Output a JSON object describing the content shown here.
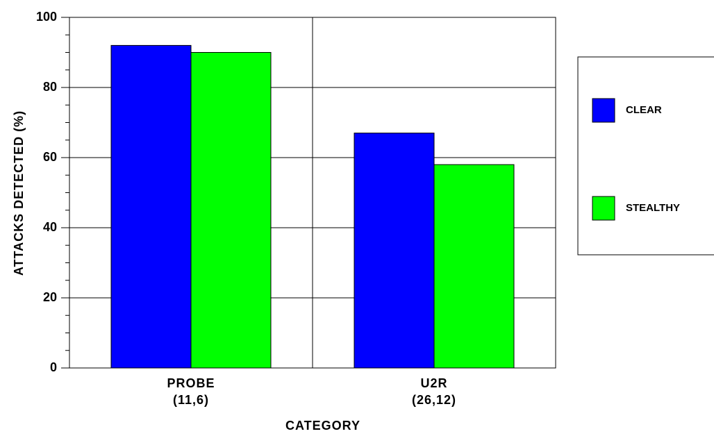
{
  "chart_data": {
    "type": "bar",
    "categories": [
      "PROBE",
      "U2R"
    ],
    "category_counts": [
      "(11,6)",
      "(26,12)"
    ],
    "series": [
      {
        "name": "CLEAR",
        "color": "#0000ff",
        "values": [
          92,
          67
        ]
      },
      {
        "name": "STEALTHY",
        "color": "#00ff00",
        "values": [
          90,
          58
        ]
      }
    ],
    "xlabel": "CATEGORY",
    "ylabel": "ATTACKS DETECTED (%)",
    "ylim": [
      0,
      100
    ],
    "yticks": [
      0,
      20,
      40,
      60,
      80,
      100
    ],
    "yminorticks": [
      5,
      10,
      15,
      25,
      30,
      35,
      45,
      50,
      55,
      65,
      70,
      75,
      85,
      90,
      95
    ],
    "grid": true,
    "legend": "right"
  }
}
